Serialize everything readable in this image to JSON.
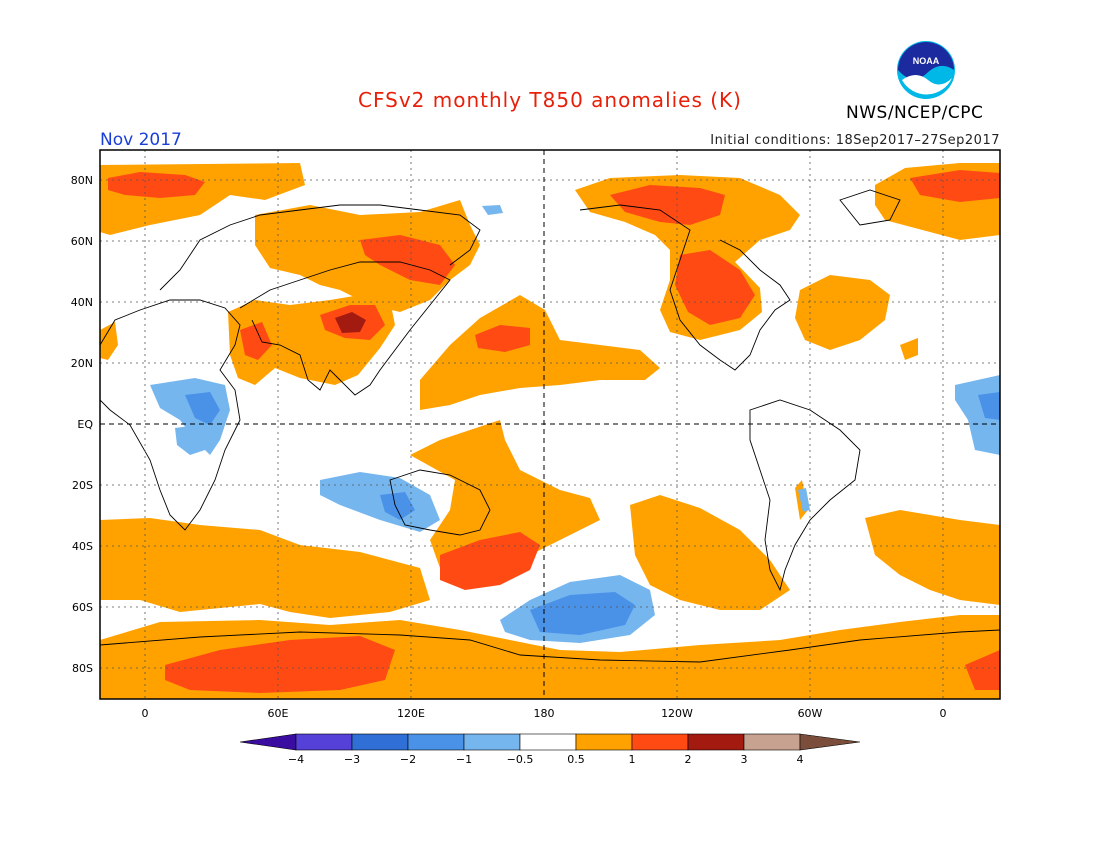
{
  "header": {
    "title": "CFSv2 monthly T850 anomalies (K)",
    "month": "Nov 2017",
    "initial_conditions": "Initial conditions: 18Sep2017–27Sep2017",
    "agency": "NWS/NCEP/CPC",
    "logo_text": "NOAA"
  },
  "colors": {
    "title": "#e8200a",
    "month": "#1a3fd6",
    "warm_0_5_1": "#ffa200",
    "warm_1_2": "#ff4a14",
    "warm_2_3": "#a31a10",
    "cool_m1_m0_5": "#75b6ef",
    "cool_m2_m1": "#4a91e8"
  },
  "axes": {
    "lat_labels": [
      "80N",
      "60N",
      "40N",
      "20N",
      "EQ",
      "20S",
      "40S",
      "60S",
      "80S"
    ],
    "lon_labels": [
      "0",
      "60E",
      "120E",
      "180",
      "120W",
      "60W",
      "0"
    ]
  },
  "legend": {
    "ticks": [
      "−4",
      "−3",
      "−2",
      "−1",
      "−0.5",
      "0.5",
      "1",
      "2",
      "3",
      "4"
    ],
    "colors": [
      "#3a0da0",
      "#5540d8",
      "#2f6fd6",
      "#4a91e8",
      "#75b6ef",
      "#ffffff",
      "#ffa200",
      "#ff4a14",
      "#a31a10",
      "#c8a290",
      "#7a4e3a"
    ]
  }
}
